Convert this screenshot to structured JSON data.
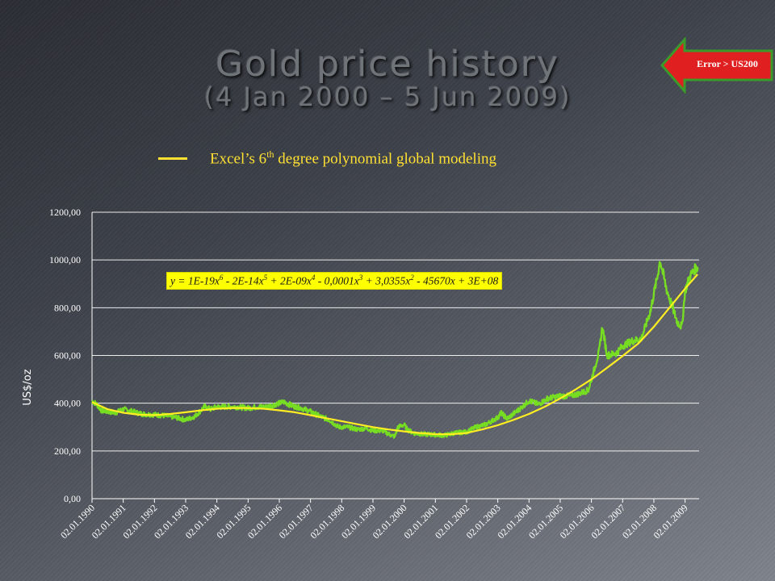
{
  "slide": {
    "title_line1": "Gold price history",
    "title_line2": "(4 Jan 2000 – 5 Jun 2009)",
    "subtitle_pre": "Excel’s 6",
    "subtitle_sup": "th",
    "subtitle_post": " degree polynomial global modeling"
  },
  "nav": {
    "label": "Error > US200",
    "icon": "left-arrow-icon",
    "fill_color": "#e02020",
    "border_color": "#3a9a2a"
  },
  "equation": {
    "parts": [
      {
        "t": "y = 1E-19x"
      },
      {
        "s": "6"
      },
      {
        "t": " - 2E-14x"
      },
      {
        "s": "5"
      },
      {
        "t": " + 2E-09x"
      },
      {
        "s": "4"
      },
      {
        "t": " - 0,0001x"
      },
      {
        "s": "3"
      },
      {
        "t": " + 3,0355x"
      },
      {
        "s": "2"
      },
      {
        "t": " - 45670x + 3E+08"
      }
    ]
  },
  "colors": {
    "price_line": "#77dd22",
    "trend_line": "#ffee22",
    "grid": "#ffffff",
    "plot_bg": "#ffffff"
  },
  "chart_data": {
    "type": "line",
    "ylabel": "US$/oz",
    "xlabel": "",
    "ylim": [
      0,
      1200
    ],
    "grid": true,
    "y_ticks": [
      "0,00",
      "200,00",
      "400,00",
      "600,00",
      "800,00",
      "1000,00",
      "1200,00"
    ],
    "y_tick_values": [
      0,
      200,
      400,
      600,
      800,
      1000,
      1200
    ],
    "x_ticks": [
      "02.01.1990",
      "02.01.1991",
      "02.01.1992",
      "02.01.1993",
      "02.01.1994",
      "02.01.1995",
      "02.01.1996",
      "02.01.1997",
      "02.01.1998",
      "02.01.1999",
      "02.01.2000",
      "02.01.2001",
      "02.01.2002",
      "02.01.2003",
      "02.01.2004",
      "02.01.2005",
      "02.01.2006",
      "02.01.2007",
      "02.01.2008",
      "02.01.2009"
    ],
    "x_tick_values": [
      1990,
      1991,
      1992,
      1993,
      1994,
      1995,
      1996,
      1997,
      1998,
      1999,
      2000,
      2001,
      2002,
      2003,
      2004,
      2005,
      2006,
      2007,
      2008,
      2009
    ],
    "xlim": [
      1990.0,
      2009.45
    ],
    "series": [
      {
        "kind": "price",
        "x": [
          1990.0,
          1990.15,
          1990.3,
          1990.5,
          1990.75,
          1991.0,
          1991.3,
          1991.6,
          1992.0,
          1992.3,
          1992.7,
          1993.0,
          1993.3,
          1993.6,
          1993.8,
          1994.0,
          1994.3,
          1994.6,
          1995.0,
          1995.3,
          1995.6,
          1996.0,
          1996.15,
          1996.4,
          1996.7,
          1997.0,
          1997.3,
          1997.6,
          1997.9,
          1998.2,
          1998.5,
          1998.8,
          1999.0,
          1999.3,
          1999.6,
          1999.7,
          1999.8,
          2000.0,
          2000.1,
          2000.3,
          2000.6,
          2001.0,
          2001.3,
          2001.6,
          2002.0,
          2002.3,
          2002.6,
          2003.0,
          2003.1,
          2003.3,
          2003.6,
          2004.0,
          2004.3,
          2004.6,
          2005.0,
          2005.3,
          2005.6,
          2005.9,
          2006.1,
          2006.25,
          2006.35,
          2006.5,
          2006.8,
          2007.0,
          2007.3,
          2007.6,
          2007.9,
          2008.0,
          2008.1,
          2008.2,
          2008.4,
          2008.6,
          2008.75,
          2008.9,
          2009.0,
          2009.15,
          2009.3,
          2009.42
        ],
        "y": [
          410,
          395,
          370,
          365,
          360,
          375,
          365,
          355,
          352,
          348,
          340,
          330,
          345,
          385,
          375,
          385,
          385,
          385,
          380,
          385,
          385,
          400,
          405,
          390,
          380,
          365,
          345,
          330,
          300,
          300,
          290,
          295,
          285,
          285,
          265,
          260,
          300,
          310,
          290,
          275,
          270,
          268,
          265,
          275,
          280,
          300,
          310,
          340,
          360,
          335,
          365,
          410,
          395,
          420,
          430,
          430,
          440,
          455,
          545,
          620,
          720,
          600,
          610,
          640,
          660,
          670,
          790,
          860,
          920,
          1000,
          880,
          800,
          740,
          720,
          870,
          930,
          960,
          970
        ]
      },
      {
        "kind": "trendline",
        "x": [
          1990.0,
          1990.5,
          1991.0,
          1991.5,
          1992.0,
          1992.5,
          1993.0,
          1993.5,
          1994.0,
          1994.5,
          1995.0,
          1995.5,
          1996.0,
          1996.5,
          1997.0,
          1997.5,
          1998.0,
          1998.5,
          1999.0,
          1999.5,
          2000.0,
          2000.5,
          2001.0,
          2001.5,
          2002.0,
          2002.5,
          2003.0,
          2003.5,
          2004.0,
          2004.5,
          2005.0,
          2005.5,
          2006.0,
          2006.5,
          2007.0,
          2007.5,
          2008.0,
          2008.5,
          2009.0,
          2009.4
        ],
        "y": [
          405,
          375,
          360,
          352,
          350,
          355,
          362,
          370,
          377,
          380,
          380,
          377,
          370,
          362,
          350,
          337,
          325,
          312,
          300,
          290,
          282,
          275,
          270,
          270,
          275,
          290,
          308,
          330,
          355,
          385,
          420,
          458,
          500,
          548,
          598,
          650,
          720,
          800,
          880,
          940
        ]
      }
    ]
  }
}
